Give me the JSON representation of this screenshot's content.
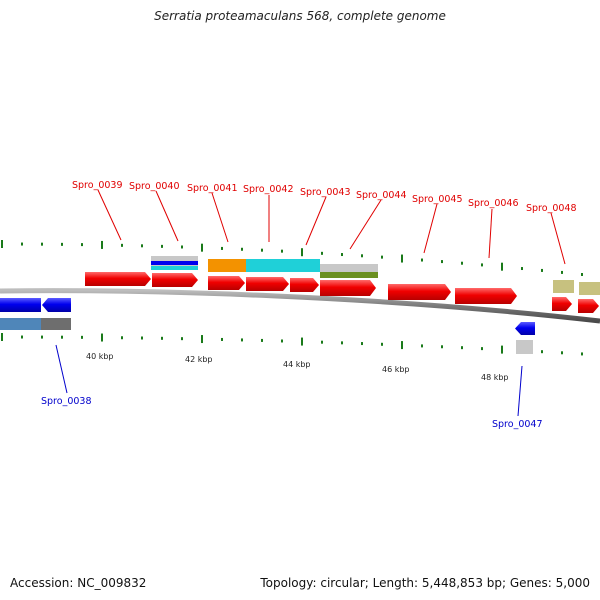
{
  "title": "Serratia proteamaculans 568, complete genome",
  "footer": {
    "accession": "Accession: NC_009832",
    "topology": "Topology: circular; Length: 5,448,853 bp; Genes: 5,000"
  },
  "colors": {
    "red_gene": "#f00000",
    "blue_gene": "#0000ee",
    "steel_blue": "#4f86b9",
    "gray_feature": "#6e6e6e",
    "light_gray": "#c8c8c8",
    "orange": "#f39200",
    "cyan": "#1fd0d8",
    "olive": "#6b9020",
    "khaki": "#c7c17f",
    "tick_green": "#1a7a1a",
    "label_red": "#e00000",
    "label_blue": "#0000cc",
    "backbone": "#808080"
  },
  "kbp_ticks": [
    "40 kbp",
    "42 kbp",
    "44 kbp",
    "46 kbp",
    "48 kbp"
  ],
  "top_labels": [
    "Spro_0039",
    "Spro_0040",
    "Spro_0041",
    "Spro_0042",
    "Spro_0043",
    "Spro_0044",
    "Spro_0045",
    "Spro_0046",
    "Spro_0048"
  ],
  "bottom_labels": [
    "Spro_0038",
    "Spro_0047"
  ]
}
